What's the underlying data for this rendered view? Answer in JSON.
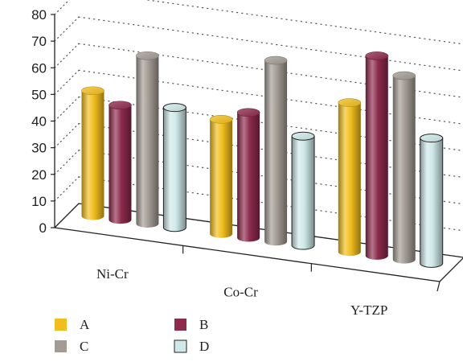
{
  "chart_data": {
    "type": "bar",
    "title": "",
    "xlabel": "",
    "ylabel": "",
    "ylim": [
      0,
      80
    ],
    "yticks": [
      0,
      10,
      20,
      30,
      40,
      50,
      60,
      70,
      80
    ],
    "grid": true,
    "style": "3d-cylinder",
    "legend_position": "bottom-left",
    "categories": [
      "Ni-Cr",
      "Co-Cr",
      "Y-TZP"
    ],
    "series": [
      {
        "name": "A",
        "color": "#f2be1e",
        "values": [
          47,
          43,
          56
        ]
      },
      {
        "name": "B",
        "color": "#8e2a4d",
        "values": [
          43,
          47,
          75
        ]
      },
      {
        "name": "C",
        "color": "#a39b94",
        "values": [
          63,
          68,
          69
        ]
      },
      {
        "name": "D",
        "color": "#cfe9e9",
        "values": [
          45,
          41,
          47
        ]
      }
    ]
  }
}
